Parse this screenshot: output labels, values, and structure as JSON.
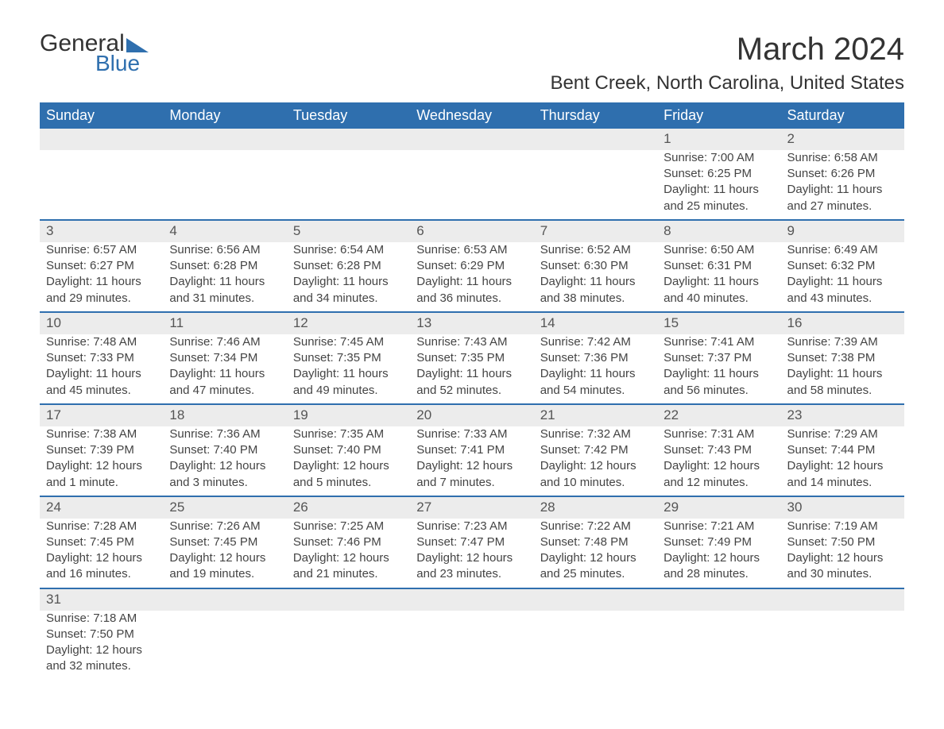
{
  "logo": {
    "word1": "General",
    "word2": "Blue"
  },
  "title": "March 2024",
  "location": "Bent Creek, North Carolina, United States",
  "header_bg": "#2f6fae",
  "header_fg": "#ffffff",
  "daynum_bg": "#ececec",
  "columns": [
    "Sunday",
    "Monday",
    "Tuesday",
    "Wednesday",
    "Thursday",
    "Friday",
    "Saturday"
  ],
  "weeks": [
    {
      "nums": [
        "",
        "",
        "",
        "",
        "",
        "1",
        "2"
      ],
      "cells": [
        [],
        [],
        [],
        [],
        [],
        [
          "Sunrise: 7:00 AM",
          "Sunset: 6:25 PM",
          "Daylight: 11 hours",
          "and 25 minutes."
        ],
        [
          "Sunrise: 6:58 AM",
          "Sunset: 6:26 PM",
          "Daylight: 11 hours",
          "and 27 minutes."
        ]
      ]
    },
    {
      "nums": [
        "3",
        "4",
        "5",
        "6",
        "7",
        "8",
        "9"
      ],
      "cells": [
        [
          "Sunrise: 6:57 AM",
          "Sunset: 6:27 PM",
          "Daylight: 11 hours",
          "and 29 minutes."
        ],
        [
          "Sunrise: 6:56 AM",
          "Sunset: 6:28 PM",
          "Daylight: 11 hours",
          "and 31 minutes."
        ],
        [
          "Sunrise: 6:54 AM",
          "Sunset: 6:28 PM",
          "Daylight: 11 hours",
          "and 34 minutes."
        ],
        [
          "Sunrise: 6:53 AM",
          "Sunset: 6:29 PM",
          "Daylight: 11 hours",
          "and 36 minutes."
        ],
        [
          "Sunrise: 6:52 AM",
          "Sunset: 6:30 PM",
          "Daylight: 11 hours",
          "and 38 minutes."
        ],
        [
          "Sunrise: 6:50 AM",
          "Sunset: 6:31 PM",
          "Daylight: 11 hours",
          "and 40 minutes."
        ],
        [
          "Sunrise: 6:49 AM",
          "Sunset: 6:32 PM",
          "Daylight: 11 hours",
          "and 43 minutes."
        ]
      ]
    },
    {
      "nums": [
        "10",
        "11",
        "12",
        "13",
        "14",
        "15",
        "16"
      ],
      "cells": [
        [
          "Sunrise: 7:48 AM",
          "Sunset: 7:33 PM",
          "Daylight: 11 hours",
          "and 45 minutes."
        ],
        [
          "Sunrise: 7:46 AM",
          "Sunset: 7:34 PM",
          "Daylight: 11 hours",
          "and 47 minutes."
        ],
        [
          "Sunrise: 7:45 AM",
          "Sunset: 7:35 PM",
          "Daylight: 11 hours",
          "and 49 minutes."
        ],
        [
          "Sunrise: 7:43 AM",
          "Sunset: 7:35 PM",
          "Daylight: 11 hours",
          "and 52 minutes."
        ],
        [
          "Sunrise: 7:42 AM",
          "Sunset: 7:36 PM",
          "Daylight: 11 hours",
          "and 54 minutes."
        ],
        [
          "Sunrise: 7:41 AM",
          "Sunset: 7:37 PM",
          "Daylight: 11 hours",
          "and 56 minutes."
        ],
        [
          "Sunrise: 7:39 AM",
          "Sunset: 7:38 PM",
          "Daylight: 11 hours",
          "and 58 minutes."
        ]
      ]
    },
    {
      "nums": [
        "17",
        "18",
        "19",
        "20",
        "21",
        "22",
        "23"
      ],
      "cells": [
        [
          "Sunrise: 7:38 AM",
          "Sunset: 7:39 PM",
          "Daylight: 12 hours",
          "and 1 minute."
        ],
        [
          "Sunrise: 7:36 AM",
          "Sunset: 7:40 PM",
          "Daylight: 12 hours",
          "and 3 minutes."
        ],
        [
          "Sunrise: 7:35 AM",
          "Sunset: 7:40 PM",
          "Daylight: 12 hours",
          "and 5 minutes."
        ],
        [
          "Sunrise: 7:33 AM",
          "Sunset: 7:41 PM",
          "Daylight: 12 hours",
          "and 7 minutes."
        ],
        [
          "Sunrise: 7:32 AM",
          "Sunset: 7:42 PM",
          "Daylight: 12 hours",
          "and 10 minutes."
        ],
        [
          "Sunrise: 7:31 AM",
          "Sunset: 7:43 PM",
          "Daylight: 12 hours",
          "and 12 minutes."
        ],
        [
          "Sunrise: 7:29 AM",
          "Sunset: 7:44 PM",
          "Daylight: 12 hours",
          "and 14 minutes."
        ]
      ]
    },
    {
      "nums": [
        "24",
        "25",
        "26",
        "27",
        "28",
        "29",
        "30"
      ],
      "cells": [
        [
          "Sunrise: 7:28 AM",
          "Sunset: 7:45 PM",
          "Daylight: 12 hours",
          "and 16 minutes."
        ],
        [
          "Sunrise: 7:26 AM",
          "Sunset: 7:45 PM",
          "Daylight: 12 hours",
          "and 19 minutes."
        ],
        [
          "Sunrise: 7:25 AM",
          "Sunset: 7:46 PM",
          "Daylight: 12 hours",
          "and 21 minutes."
        ],
        [
          "Sunrise: 7:23 AM",
          "Sunset: 7:47 PM",
          "Daylight: 12 hours",
          "and 23 minutes."
        ],
        [
          "Sunrise: 7:22 AM",
          "Sunset: 7:48 PM",
          "Daylight: 12 hours",
          "and 25 minutes."
        ],
        [
          "Sunrise: 7:21 AM",
          "Sunset: 7:49 PM",
          "Daylight: 12 hours",
          "and 28 minutes."
        ],
        [
          "Sunrise: 7:19 AM",
          "Sunset: 7:50 PM",
          "Daylight: 12 hours",
          "and 30 minutes."
        ]
      ]
    },
    {
      "nums": [
        "31",
        "",
        "",
        "",
        "",
        "",
        ""
      ],
      "cells": [
        [
          "Sunrise: 7:18 AM",
          "Sunset: 7:50 PM",
          "Daylight: 12 hours",
          "and 32 minutes."
        ],
        [],
        [],
        [],
        [],
        [],
        []
      ]
    }
  ]
}
